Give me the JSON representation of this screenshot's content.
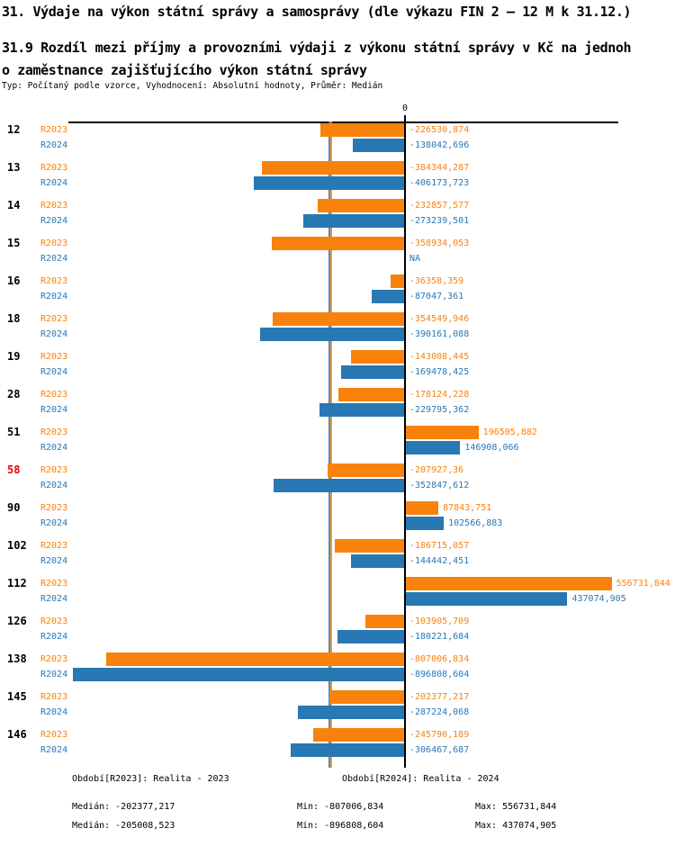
{
  "header": {
    "title": "31. Výdaje na výkon státní správy a samosprávy (dle výkazu FIN 2 – 12 M k 31.12.)",
    "subtitle_line1": "31.9 Rozdíl mezi příjmy a provozními výdaji z výkonu státní správy v Kč na jednoh",
    "subtitle_line2": "o zaměstnance zajišťujícího výkon státní správy",
    "meta_line": "Typ: Počítaný podle vzorce, Vyhodnocení: Absolutní hodnoty, Průměr: Medián"
  },
  "axis": {
    "zero_label": "0"
  },
  "colors": {
    "r2023": "#F9820D",
    "r2024": "#2878B4",
    "highlight": "#E8000D",
    "axis": "#000000"
  },
  "chart_data": {
    "type": "bar",
    "orientation": "horizontal",
    "title": "31.9 Rozdíl mezi příjmy a provozními výdaji z výkonu státní správy v Kč na jednoho zaměstnance zajišťujícího výkon státní správy",
    "xlim": [
      -910000,
      580000
    ],
    "zero_line": true,
    "grid": false,
    "legend_position": "bottom",
    "categories": [
      "12",
      "13",
      "14",
      "15",
      "16",
      "18",
      "19",
      "28",
      "51",
      "58",
      "90",
      "102",
      "112",
      "126",
      "138",
      "145",
      "146"
    ],
    "highlighted_categories": [
      "58"
    ],
    "series": [
      {
        "name": "R2023",
        "legend": "Období[R2023]: Realita - 2023",
        "values": [
          -226530.874,
          -384344.287,
          -232857.577,
          -358934.053,
          -36358.359,
          -354549.946,
          -143008.445,
          -178124.228,
          196505.882,
          -207927.36,
          87843.751,
          -186715.057,
          556731.844,
          -103905.709,
          -807006.834,
          -202377.217,
          -245790.189
        ],
        "value_labels": [
          "-226530,874",
          "-384344,287",
          "-232857,577",
          "-358934,053",
          "-36358,359",
          "-354549,946",
          "-143008,445",
          "-178124,228",
          "196505,882",
          "-207927,36",
          "87843,751",
          "-186715,057",
          "556731,844",
          "-103905,709",
          "-807006,834",
          "-202377,217",
          "-245790,189"
        ],
        "median": -202377.217,
        "stats": {
          "median": "Medián: -202377,217",
          "min": "Min: -807006,834",
          "max": "Max: 556731,844"
        }
      },
      {
        "name": "R2024",
        "legend": "Období[R2024]: Realita - 2024",
        "values": [
          -138042.696,
          -406173.723,
          -273239.501,
          null,
          -87047.361,
          -390161.088,
          -169478.425,
          -229795.362,
          146908.066,
          -352847.612,
          102566.883,
          -144442.451,
          437074.905,
          -180221.684,
          -896808.604,
          -287224.068,
          -306467.687
        ],
        "value_labels": [
          "-138042,696",
          "-406173,723",
          "-273239,501",
          "NA",
          "-87047,361",
          "-390161,088",
          "-169478,425",
          "-229795,362",
          "146908,066",
          "-352847,612",
          "102566,883",
          "-144442,451",
          "437074,905",
          "-180221,684",
          "-896808,604",
          "-287224,068",
          "-306467,687"
        ],
        "median": -205008.523,
        "stats": {
          "median": "Medián: -205008,523",
          "min": "Min: -896808,604",
          "max": "Max: 437074,905"
        }
      }
    ]
  },
  "footer": {
    "legend_2023": "Období[R2023]: Realita - 2023",
    "legend_2024": "Období[R2024]: Realita - 2024",
    "median_2023": "Medián: -202377,217",
    "min_2023": "Min: -807006,834",
    "max_2023": "Max: 556731,844",
    "median_2024": "Medián: -205008,523",
    "min_2024": "Min: -896808,604",
    "max_2024": "Max: 437074,905"
  }
}
